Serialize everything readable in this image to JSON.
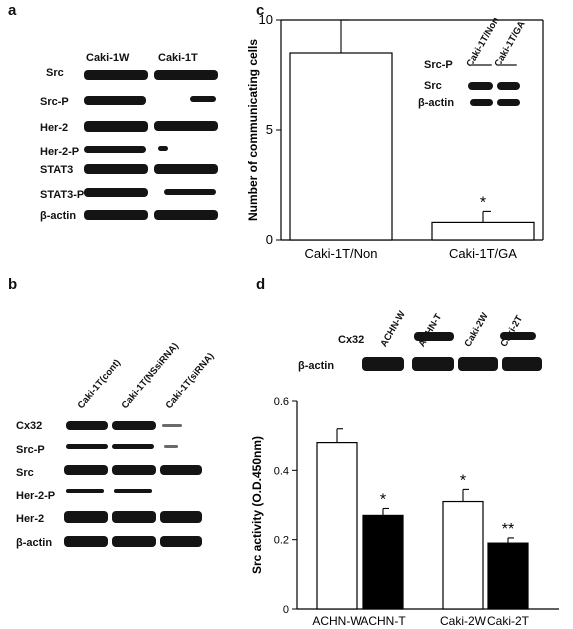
{
  "panels": {
    "a": {
      "letter": "a",
      "columns": [
        "Caki-1W",
        "Caki-1T"
      ],
      "rows": [
        "Src",
        "Src-P",
        "Her-2",
        "Her-2-P",
        "STAT3",
        "STAT3-P",
        "β-actin"
      ]
    },
    "b": {
      "letter": "b",
      "columns": [
        "Caki-1T(cont)",
        "Caki-1T(NSsiRNA)",
        "Caki-1T(siRNA)"
      ],
      "rows": [
        "Cx32",
        "Src-P",
        "Src",
        "Her-2-P",
        "Her-2",
        "β-actin"
      ]
    },
    "c": {
      "letter": "c",
      "inset_columns": [
        "Caki-1T/Non",
        "Caki-1T/GA"
      ],
      "inset_rows": [
        "Src-P",
        "Src",
        "β-actin"
      ],
      "significance": [
        "*"
      ]
    },
    "d": {
      "letter": "d",
      "blot_columns": [
        "ACHN-W",
        "ACHN-T",
        "Caki-2W",
        "Caki-2T"
      ],
      "blot_rows": [
        "Cx32",
        "β-actin"
      ],
      "significance": [
        "*",
        "*",
        "**"
      ]
    }
  },
  "chart_data": [
    {
      "type": "bar",
      "panel": "c",
      "categories": [
        "Caki-1T/Non",
        "Caki-1T/GA"
      ],
      "values": [
        8.5,
        0.8
      ],
      "errors": [
        1.5,
        0.5
      ],
      "bar_colors": [
        "#ffffff",
        "#ffffff"
      ],
      "ylabel": "Number of communicating cells",
      "ylim": [
        0,
        10
      ],
      "yticks": [
        0,
        5,
        10
      ],
      "grid": false
    },
    {
      "type": "bar",
      "panel": "d",
      "categories": [
        "ACHN-W",
        "ACHN-T",
        "Caki-2W",
        "Caki-2T"
      ],
      "values": [
        0.48,
        0.27,
        0.31,
        0.19
      ],
      "errors": [
        0.04,
        0.02,
        0.035,
        0.015
      ],
      "bar_colors": [
        "#ffffff",
        "#000000",
        "#ffffff",
        "#000000"
      ],
      "ylabel": "Src activity (O.D.450nm)",
      "ylim": [
        0,
        0.6
      ],
      "yticks": [
        "0",
        "0.2",
        "0.4",
        "0.6"
      ],
      "grid": false
    }
  ]
}
